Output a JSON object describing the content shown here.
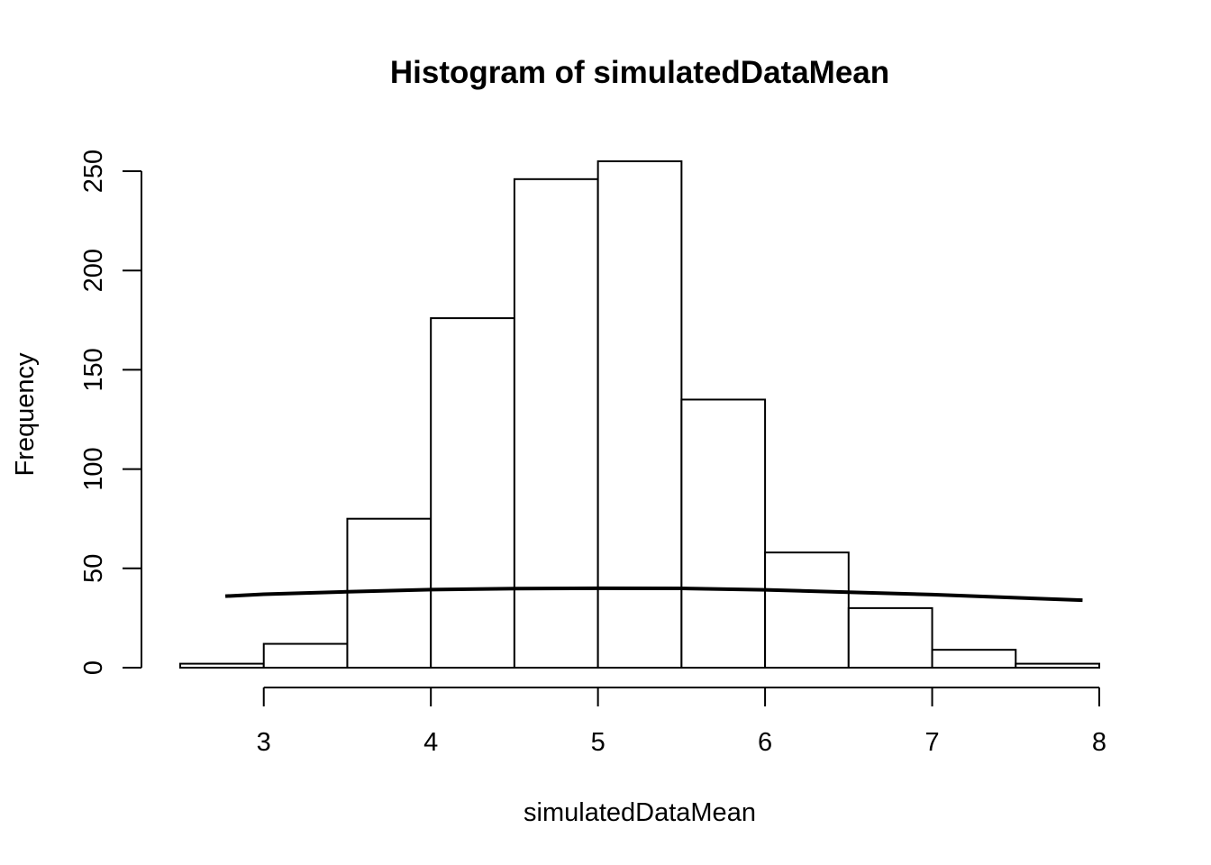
{
  "chart_data": {
    "type": "bar",
    "title": "Histogram of simulatedDataMean",
    "xlabel": "simulatedDataMean",
    "ylabel": "Frequency",
    "bin_edges": [
      2.5,
      3.0,
      3.5,
      4.0,
      4.5,
      5.0,
      5.5,
      6.0,
      6.5,
      7.0,
      7.5,
      8.0
    ],
    "values": [
      2,
      12,
      75,
      176,
      246,
      255,
      135,
      58,
      30,
      9,
      2
    ],
    "xlim": [
      2.5,
      8.0
    ],
    "ylim": [
      0,
      250
    ],
    "x_ticks": [
      3,
      4,
      5,
      6,
      7,
      8
    ],
    "y_ticks": [
      0,
      50,
      100,
      150,
      200,
      250
    ],
    "overlay_line": {
      "x": [
        2.77,
        3.0,
        3.5,
        4.0,
        4.5,
        5.0,
        5.5,
        6.0,
        6.5,
        7.0,
        7.5,
        7.9
      ],
      "y": [
        36.0,
        37.0,
        38.2,
        39.3,
        39.8,
        40.0,
        39.9,
        39.2,
        38.0,
        36.8,
        35.2,
        34.0
      ]
    },
    "grid": false,
    "legend": "none"
  }
}
